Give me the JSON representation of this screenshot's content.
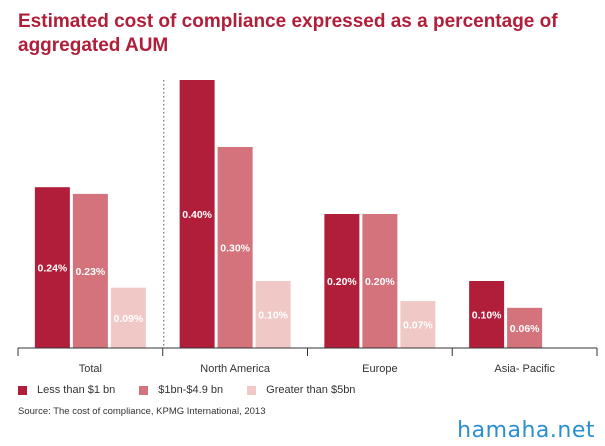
{
  "title": "Estimated cost of compliance expressed as a percentage of aggregated AUM",
  "source": "Source: The cost of compliance, KPMG International, 2013",
  "watermark": "hamaha.net",
  "colors": {
    "title": "#b01e3a",
    "series": [
      "#b01e3a",
      "#d4737b",
      "#f0c8c6"
    ]
  },
  "chart_data": {
    "type": "bar",
    "categories": [
      "Total",
      "North America",
      "Europe",
      "Asia- Pacific"
    ],
    "series": [
      {
        "name": "Less than $1 bn",
        "values": [
          0.24,
          0.4,
          0.2,
          0.1
        ],
        "labels": [
          "0.24%",
          "0.40%",
          "0.20%",
          "0.10%"
        ]
      },
      {
        "name": "$1bn-$4.9 bn",
        "values": [
          0.23,
          0.3,
          0.2,
          0.06
        ],
        "labels": [
          "0.23%",
          "0.30%",
          "0.20%",
          "0.06%"
        ]
      },
      {
        "name": "Greater than $5bn",
        "values": [
          0.09,
          0.1,
          0.07,
          null
        ],
        "labels": [
          "0.09%",
          "0.10%",
          "0.07%",
          ""
        ]
      }
    ],
    "ylim": [
      0,
      0.4
    ],
    "xlabel": "",
    "ylabel": "",
    "legend": "bottom",
    "grid": false
  }
}
